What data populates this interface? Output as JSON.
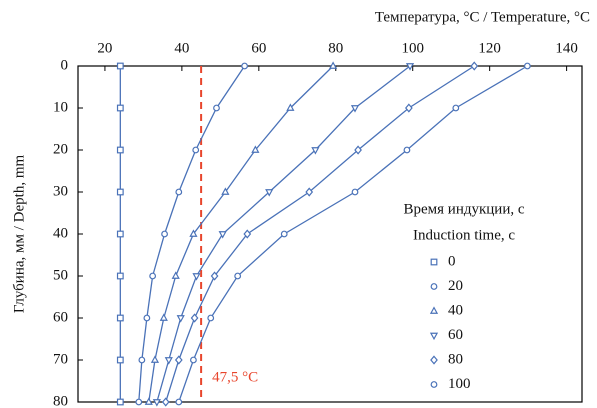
{
  "chart_data": {
    "type": "line",
    "title": "Температура, °C / Temperature, °C",
    "y_label": "Глубина, мм / Depth, mm",
    "legend_title": [
      "Время индукции, с",
      "Induction time, с"
    ],
    "x_axis_position": "top",
    "y_inverted": true,
    "xlim": [
      13,
      144
    ],
    "xticks": [
      20,
      40,
      60,
      80,
      100,
      120,
      140
    ],
    "ylim": [
      0,
      80
    ],
    "yticks": [
      0,
      10,
      20,
      30,
      40,
      50,
      60,
      70,
      80
    ],
    "y": [
      0,
      10,
      20,
      30,
      40,
      50,
      60,
      70,
      80
    ],
    "series": [
      {
        "name": "0",
        "color": "#4a72b8",
        "marker": "square",
        "x": [
          24,
          24,
          24,
          24,
          24,
          24,
          24,
          24,
          24
        ]
      },
      {
        "name": "20",
        "color": "#4a72b8",
        "marker": "circle",
        "x": [
          56.3,
          49,
          43.6,
          39.2,
          35.5,
          32.4,
          30.9,
          29.6,
          28.8
        ]
      },
      {
        "name": "40",
        "color": "#4a72b8",
        "marker": "triangle-up",
        "x": [
          79.3,
          68.2,
          59.1,
          51.3,
          43,
          38.4,
          35.3,
          33,
          31.4
        ]
      },
      {
        "name": "60",
        "color": "#4a72b8",
        "marker": "triangle-down",
        "x": [
          99.3,
          85,
          74.7,
          62.7,
          50.6,
          43.8,
          39.7,
          36.6,
          33.5
        ]
      },
      {
        "name": "80",
        "color": "#4a72b8",
        "marker": "diamond",
        "x": [
          116,
          99,
          85.8,
          73.1,
          57,
          48.5,
          43.3,
          39.2,
          35.8
        ]
      },
      {
        "name": "100",
        "color": "#4a72b8",
        "marker": "circle",
        "x": [
          129.8,
          111.2,
          98.5,
          85,
          66.6,
          54.5,
          47.5,
          43,
          39.2
        ]
      }
    ],
    "reference_line": {
      "x": 45,
      "label": "47,5 °C",
      "color": "#e8452c"
    }
  }
}
